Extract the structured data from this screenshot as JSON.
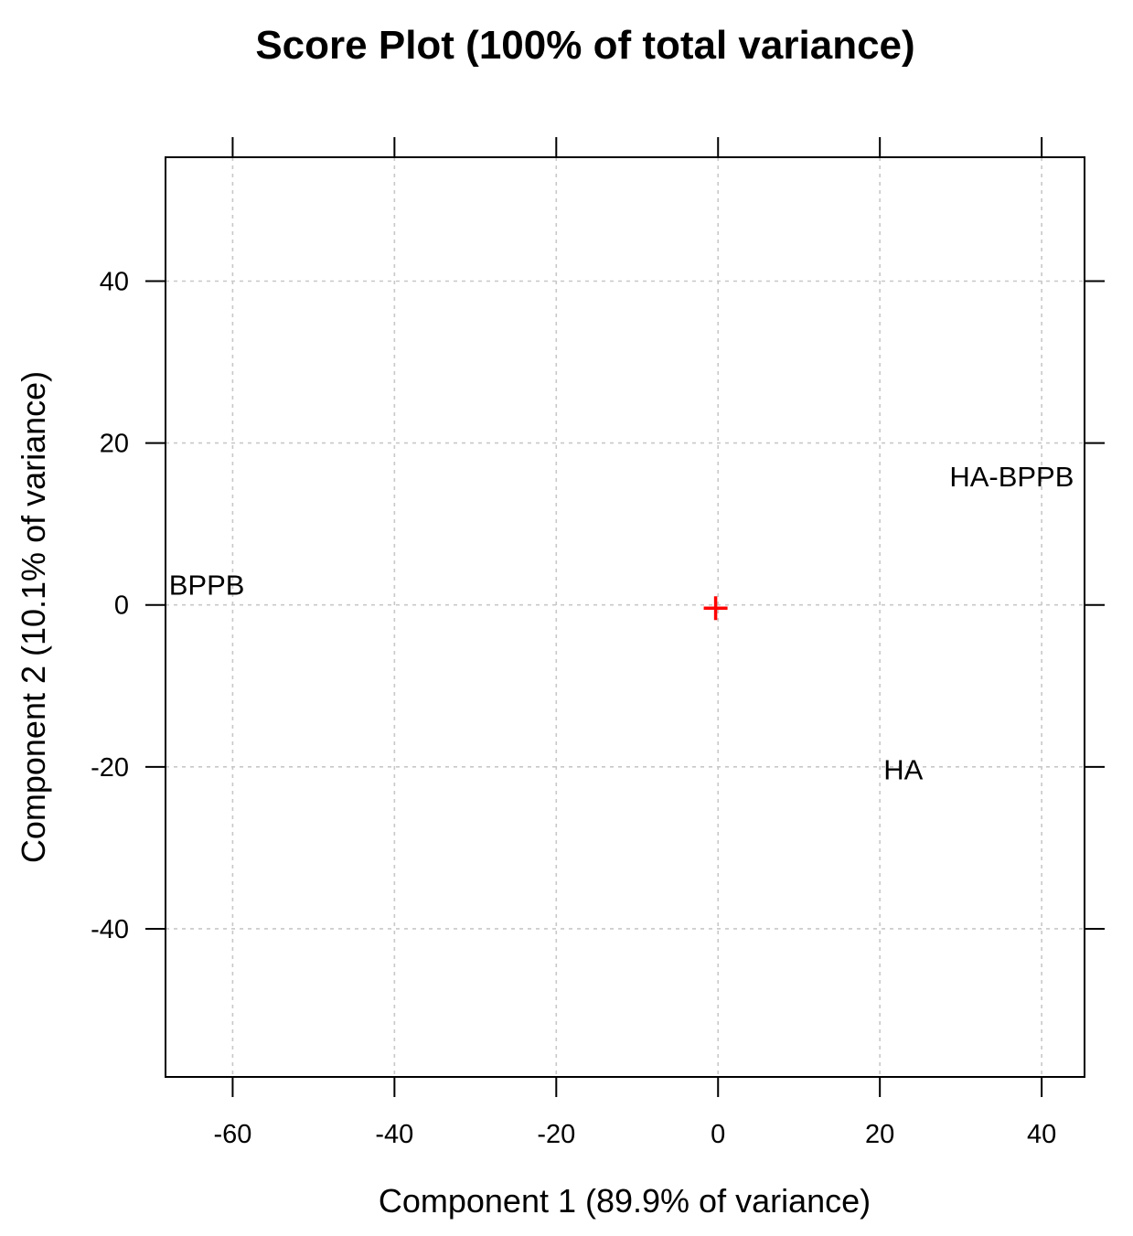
{
  "chart_data": {
    "type": "scatter",
    "title": "Score Plot (100% of total variance)",
    "xlabel": "Component 1 (89.9% of variance)",
    "ylabel": "Component 2 (10.1% of variance)",
    "xlim": [
      -68.3,
      45.3
    ],
    "ylim": [
      -58.3,
      55.3
    ],
    "x_ticks": [
      -60,
      -40,
      -20,
      0,
      20,
      40
    ],
    "y_ticks": [
      -40,
      -20,
      0,
      20,
      40
    ],
    "grid": true,
    "points": [
      {
        "label": "BPPB",
        "x": -63.2,
        "y": 2.5
      },
      {
        "label": "HA-BPPB",
        "x": 36.3,
        "y": 15.9
      },
      {
        "label": "HA",
        "x": 22.9,
        "y": -20.3
      }
    ],
    "origin_marker": {
      "x": -0.3,
      "y": -0.4,
      "color": "#ff0000"
    }
  }
}
